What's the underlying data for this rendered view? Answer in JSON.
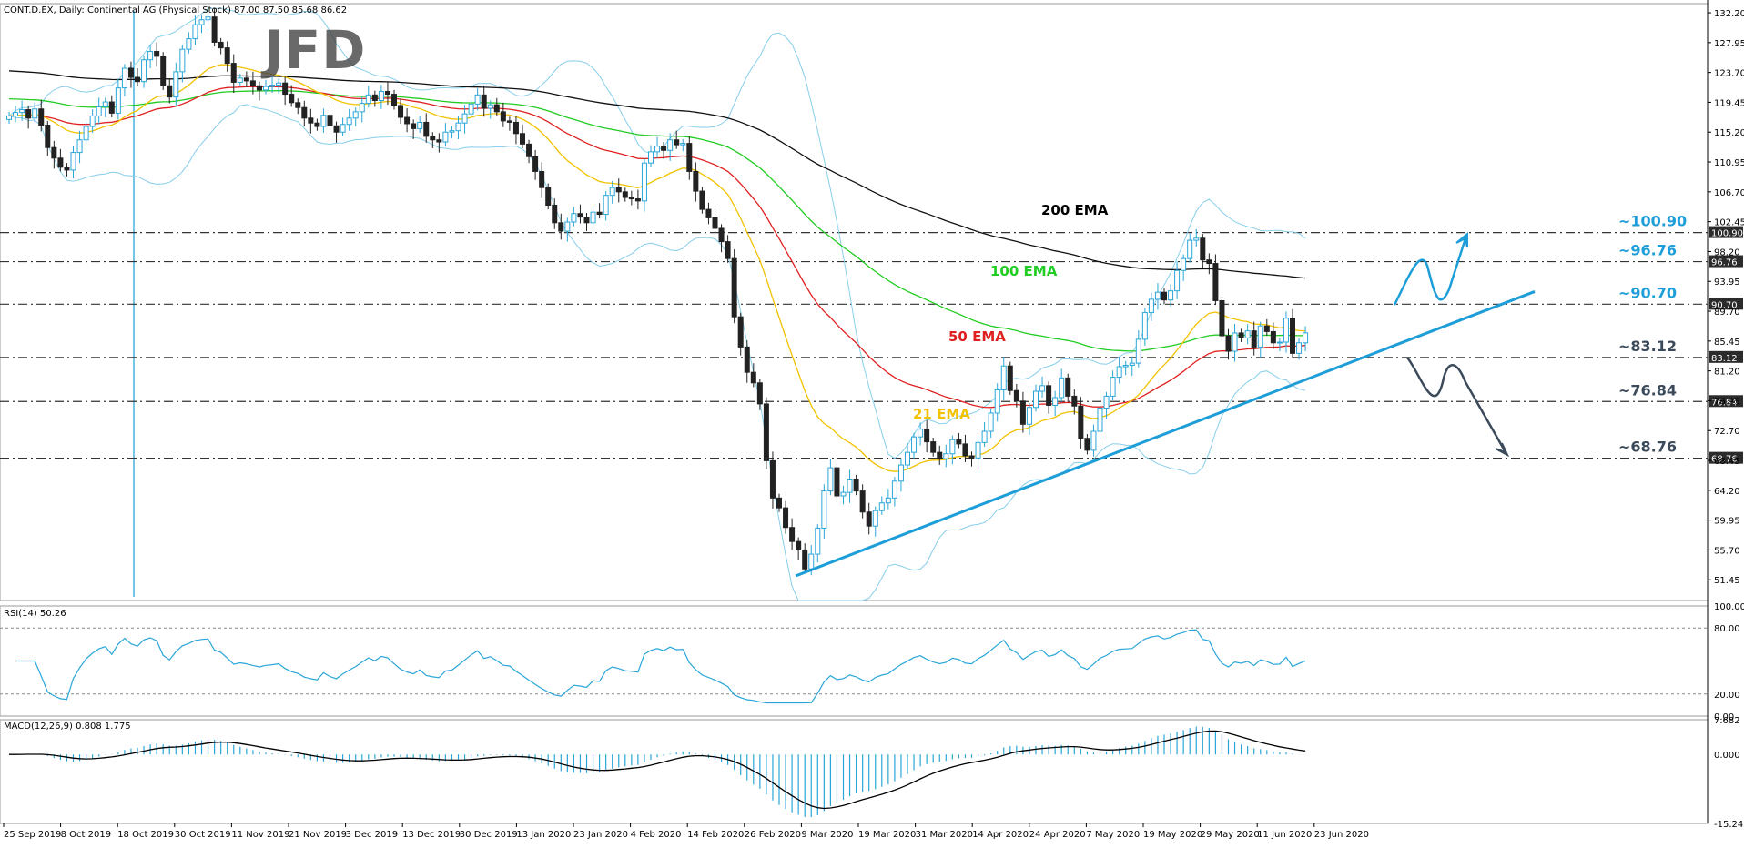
{
  "header": {
    "symbol_line": "CONT.D.EX, Daily:  Continental AG (Physical Stock)  87.00 87.50 85.68 86.62",
    "logo": "JFD"
  },
  "colors": {
    "ema21": "#f2c200",
    "ema50": "#e02020",
    "ema100": "#22cc22",
    "ema200": "#111111",
    "bands": "#87ceeb",
    "trend": "#1e9ed8",
    "arrow_up": "#1e9ed8",
    "arrow_down": "#3b4a5a",
    "bull_candle": "#29a6d9",
    "bear_candle": "#222222",
    "rsi": "#29a6d9",
    "macd_hist": "#29a6d9",
    "macd_signal": "#000000",
    "level_teal": "#1e9ed8",
    "level_dark": "#3b4a5a"
  },
  "indicators": {
    "rsi_label": "RSI(14) 50.26",
    "macd_label": "MACD(12,26,9) 0.808 1.775"
  },
  "annotations": {
    "ema200": "200 EMA",
    "ema100": "100 EMA",
    "ema50": "50 EMA",
    "ema21": "21 EMA"
  },
  "levels": [
    {
      "label": "~100.90",
      "value": 100.9,
      "tag": "100.90",
      "style": "teal"
    },
    {
      "label": "~96.76",
      "value": 96.76,
      "tag": "96.76",
      "style": "teal"
    },
    {
      "label": "~90.70",
      "value": 90.7,
      "tag": "90.70",
      "style": "teal"
    },
    {
      "label": "~83.12",
      "value": 83.12,
      "tag": "83.12",
      "style": "dark"
    },
    {
      "label": "~76.84",
      "value": 76.84,
      "tag": "76.84",
      "style": "dark"
    },
    {
      "label": "~68.76",
      "value": 68.76,
      "tag": "68.76",
      "style": "dark"
    }
  ],
  "chart_data": {
    "type": "candlestick",
    "title": "CONT.D.EX, Daily:  Continental AG (Physical Stock)",
    "ylim": [
      48.5,
      133.5
    ],
    "price_ticks": [
      "132.20",
      "127.95",
      "123.70",
      "119.45",
      "115.20",
      "110.95",
      "106.70",
      "102.45",
      "98.20",
      "93.95",
      "89.70",
      "85.45",
      "81.20",
      "76.95",
      "72.70",
      "68.45",
      "64.20",
      "59.95",
      "55.70",
      "51.45"
    ],
    "x_labels": [
      "25 Sep 2019",
      "8 Oct 2019",
      "18 Oct 2019",
      "30 Oct 2019",
      "11 Nov 2019",
      "21 Nov 2019",
      "3 Dec 2019",
      "13 Dec 2019",
      "30 Dec 2019",
      "13 Jan 2020",
      "23 Jan 2020",
      "4 Feb 2020",
      "14 Feb 2020",
      "26 Feb 2020",
      "9 Mar 2020",
      "19 Mar 2020",
      "31 Mar 2020",
      "14 Apr 2020",
      "24 Apr 2020",
      "7 May 2020",
      "19 May 2020",
      "29 May 2020",
      "11 Jun 2020",
      "23 Jun 2020"
    ],
    "closes": [
      117.5,
      118.0,
      118.4,
      117.2,
      118.5,
      116.2,
      113.0,
      111.5,
      110.2,
      109.8,
      112.3,
      114.1,
      116.0,
      117.5,
      118.8,
      119.5,
      117.9,
      121.5,
      124.3,
      123.0,
      122.4,
      125.5,
      126.7,
      126.0,
      121.8,
      120.2,
      123.8,
      127.0,
      128.5,
      130.5,
      131.2,
      131.6,
      128.0,
      127.2,
      125.0,
      122.3,
      122.9,
      122.5,
      121.8,
      121.2,
      121.7,
      121.9,
      122.2,
      120.6,
      119.4,
      118.7,
      117.2,
      116.5,
      116.0,
      117.6,
      116.1,
      115.2,
      116.3,
      117.2,
      118.1,
      119.3,
      120.5,
      119.7,
      121.0,
      120.6,
      119.0,
      117.3,
      116.4,
      115.7,
      116.6,
      114.6,
      114.1,
      113.8,
      115.2,
      115.4,
      116.5,
      117.8,
      119.2,
      120.5,
      118.6,
      119.1,
      118.1,
      116.8,
      116.6,
      115.0,
      113.5,
      111.7,
      109.6,
      107.3,
      104.8,
      102.3,
      101.1,
      102.4,
      103.6,
      103.1,
      102.3,
      103.8,
      103.5,
      106.2,
      107.3,
      106.7,
      105.9,
      105.7,
      105.4,
      110.8,
      112.4,
      113.2,
      112.6,
      114.1,
      113.4,
      113.6,
      109.6,
      106.8,
      104.2,
      103.0,
      101.5,
      99.6,
      97.2,
      88.9,
      84.6,
      81.0,
      79.5,
      76.5,
      68.4,
      63.1,
      61.7,
      58.9,
      56.9,
      55.7,
      53.0,
      55.1,
      58.8,
      64.1,
      67.4,
      63.4,
      63.9,
      65.8,
      64.1,
      61.1,
      59.1,
      61.3,
      62.4,
      63.1,
      65.5,
      67.8,
      69.6,
      71.8,
      72.9,
      71.1,
      69.6,
      68.7,
      69.4,
      71.4,
      70.8,
      69.1,
      68.8,
      71.0,
      72.6,
      75.2,
      78.5,
      81.9,
      78.4,
      76.9,
      73.6,
      76.0,
      78.3,
      79.1,
      76.3,
      77.4,
      80.2,
      77.6,
      76.2,
      71.6,
      69.9,
      72.6,
      75.9,
      77.6,
      80.3,
      81.8,
      82.0,
      82.3,
      85.7,
      89.5,
      91.4,
      92.4,
      91.3,
      92.6,
      95.5,
      97.2,
      99.8,
      100.1,
      97.0,
      96.5,
      91.2,
      86.2,
      84.0,
      86.6,
      85.9,
      86.9,
      84.6,
      87.6,
      86.8,
      85.2,
      85.3,
      88.7,
      83.7,
      85.2,
      86.62
    ],
    "ema_lines": [
      {
        "name": "21 EMA",
        "color": "#f2c200"
      },
      {
        "name": "50 EMA",
        "color": "#e02020"
      },
      {
        "name": "100 EMA",
        "color": "#22cc22"
      },
      {
        "name": "200 EMA",
        "color": "#111111"
      }
    ],
    "horizontal_levels": [
      100.9,
      96.76,
      90.7,
      83.12,
      76.84,
      68.76
    ],
    "uptrend_line": {
      "from_date": "19 Mar 2020",
      "from_price": 52.0,
      "to_price": 92.5,
      "color": "#1e9ed8"
    },
    "rsi": {
      "period": 14,
      "last": 50.26,
      "ylim": [
        0,
        100
      ],
      "ticks": [
        "100.00",
        "80.00",
        "20.00",
        "0.00"
      ]
    },
    "macd": {
      "params": "12,26,9",
      "main": 0.808,
      "signal": 1.775,
      "ylim": [
        -15.242,
        7.682
      ],
      "ticks": [
        "7.682",
        "0.000",
        "-15.242"
      ]
    }
  }
}
